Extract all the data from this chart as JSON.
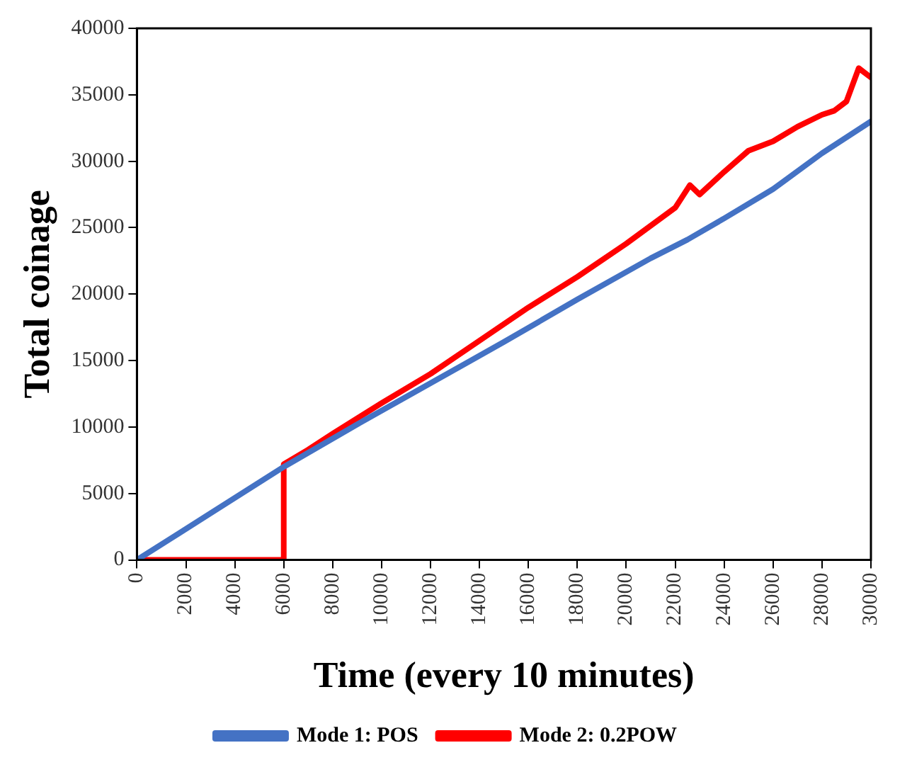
{
  "chart_data": {
    "type": "line",
    "xlabel": "Time (every 10 minutes)",
    "ylabel": "Total coinage",
    "xlim": [
      0,
      30000
    ],
    "ylim": [
      0,
      40000
    ],
    "xticks": [
      0,
      2000,
      4000,
      6000,
      8000,
      10000,
      12000,
      14000,
      16000,
      18000,
      20000,
      22000,
      24000,
      26000,
      28000,
      30000
    ],
    "yticks": [
      0,
      5000,
      10000,
      15000,
      20000,
      25000,
      30000,
      35000,
      40000
    ],
    "grid": false,
    "legend": "bottom",
    "marker": "none",
    "line_style": "solid",
    "series": [
      {
        "name": "Mode 1: POS",
        "color": "#4472c4",
        "x": [
          0,
          3000,
          6000,
          9000,
          12000,
          15000,
          18000,
          21000,
          22500,
          24000,
          26000,
          28000,
          30000
        ],
        "values": [
          0,
          3500,
          7000,
          10200,
          13300,
          16400,
          19600,
          22700,
          24100,
          25700,
          27900,
          30600,
          33000
        ]
      },
      {
        "name": "Mode 2: 0.2POW",
        "color": "#ff0000",
        "x": [
          0,
          6000,
          6000,
          7000,
          8000,
          10000,
          12000,
          14000,
          16000,
          18000,
          20000,
          22000,
          22600,
          23000,
          24000,
          25000,
          26000,
          27000,
          28000,
          28500,
          29000,
          29500,
          30000
        ],
        "values": [
          0,
          0,
          7200,
          8300,
          9500,
          11800,
          14000,
          16500,
          19000,
          21300,
          23800,
          26500,
          28200,
          27500,
          29200,
          30800,
          31500,
          32600,
          33500,
          33800,
          34500,
          37000,
          36300
        ]
      }
    ]
  }
}
